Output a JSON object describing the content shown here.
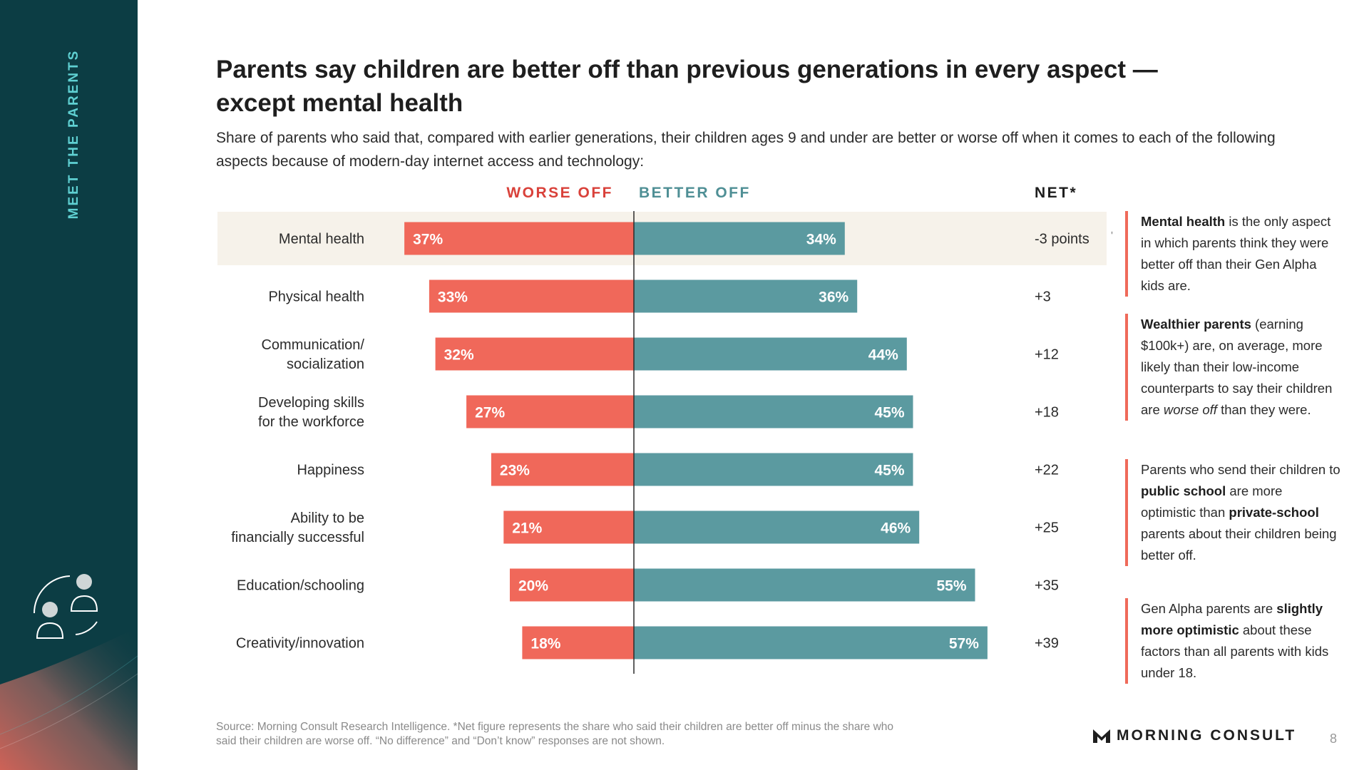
{
  "sidebar": {
    "section_label": "MEET THE PARENTS"
  },
  "header": {
    "title": "Parents say children are better off than previous generations in every aspect — except mental health",
    "subtitle": "Share of parents who said that, compared with earlier generations, their children ages 9 and under are better or worse off when it comes to each of the following aspects because of modern-day internet access and technology:"
  },
  "colors": {
    "worse": "#f0685a",
    "better": "#5b9aa0",
    "highlight_row": "#f6f2ea",
    "sidebar": "#0c3d44",
    "accent_teal": "#5fd0d2"
  },
  "chart_data": {
    "type": "bar",
    "orientation": "horizontal-diverging",
    "headers": {
      "worse": "WORSE OFF",
      "better": "BETTER OFF",
      "net": "NET*"
    },
    "categories": [
      [
        "Mental health"
      ],
      [
        "Physical health"
      ],
      [
        "Communication/",
        "socialization"
      ],
      [
        "Developing skills",
        "for the workforce"
      ],
      [
        "Happiness"
      ],
      [
        "Ability to be",
        "financially successful"
      ],
      [
        "Education/schooling"
      ],
      [
        "Creativity/innovation"
      ]
    ],
    "series": [
      {
        "name": "WORSE OFF",
        "values": [
          37,
          33,
          32,
          27,
          23,
          21,
          20,
          18
        ]
      },
      {
        "name": "BETTER OFF",
        "values": [
          34,
          36,
          44,
          45,
          45,
          46,
          55,
          57
        ]
      }
    ],
    "bar_labels": {
      "worse": [
        "37%",
        "33%",
        "32%",
        "27%",
        "23%",
        "21%",
        "20%",
        "18%"
      ],
      "better": [
        "34%",
        "36%",
        "44%",
        "45%",
        "45%",
        "46%",
        "55%",
        "57%"
      ]
    },
    "net_labels": [
      "-3 points",
      "+3",
      "+12",
      "+18",
      "+22",
      "+25",
      "+35",
      "+39"
    ],
    "highlight_index": 0,
    "xlim": [
      -40,
      60
    ]
  },
  "notes": [
    {
      "segments": [
        {
          "b": "Mental health"
        },
        {
          "t": " is the only aspect in which parents think they were better off than their Gen Alpha kids are."
        }
      ]
    },
    {
      "segments": [
        {
          "b": "Wealthier parents"
        },
        {
          "t": " (earning $100k+) are, on average, more likely than their low-income counterparts to say their children are "
        },
        {
          "i": "worse off"
        },
        {
          "t": " than they were."
        }
      ]
    },
    {
      "segments": [
        {
          "t": "Parents who send their children to "
        },
        {
          "b": "public school"
        },
        {
          "t": " are more optimistic than "
        },
        {
          "b": "private-school"
        },
        {
          "t": " parents about their children being better off."
        }
      ]
    },
    {
      "segments": [
        {
          "t": "Gen Alpha parents are "
        },
        {
          "b": "slightly more optimistic"
        },
        {
          "t": " about these factors than all parents with kids under 18."
        }
      ]
    }
  ],
  "footer": {
    "source": "Source: Morning Consult Research Intelligence. *Net figure represents the share who said their children are better off minus the share who said their children are worse off. “No difference” and “Don’t know” responses are not shown.",
    "logo_text": "MORNING CONSULT",
    "page_number": "8"
  }
}
